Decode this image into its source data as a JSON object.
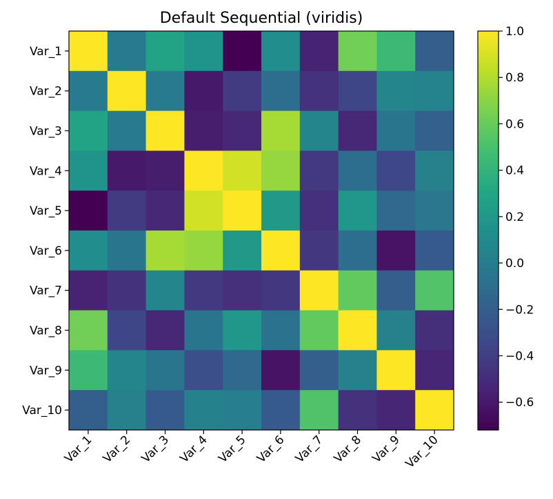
{
  "chart_data": {
    "type": "heatmap",
    "title": "Default Sequential (viridis)",
    "xlabel": "",
    "ylabel": "",
    "row_labels": [
      "Var_1",
      "Var_2",
      "Var_3",
      "Var_4",
      "Var_5",
      "Var_6",
      "Var_7",
      "Var_8",
      "Var_9",
      "Var_10"
    ],
    "col_labels": [
      "Var_1",
      "Var_2",
      "Var_3",
      "Var_4",
      "Var_5",
      "Var_6",
      "Var_7",
      "Var_8",
      "Var_9",
      "Var_10"
    ],
    "values": [
      [
        1.0,
        -0.02,
        0.28,
        0.16,
        -0.72,
        0.12,
        -0.55,
        0.63,
        0.45,
        -0.2
      ],
      [
        -0.02,
        1.0,
        -0.02,
        -0.6,
        -0.42,
        -0.1,
        -0.47,
        -0.36,
        0.06,
        0.05
      ],
      [
        0.28,
        -0.02,
        1.0,
        -0.58,
        -0.52,
        0.77,
        0.07,
        -0.52,
        -0.05,
        -0.19
      ],
      [
        0.16,
        -0.6,
        -0.58,
        1.0,
        0.88,
        0.73,
        -0.43,
        -0.1,
        -0.35,
        0.03
      ],
      [
        -0.72,
        -0.42,
        -0.52,
        0.88,
        1.0,
        0.21,
        -0.48,
        0.19,
        -0.13,
        -0.04
      ],
      [
        0.12,
        -0.05,
        0.77,
        0.73,
        0.21,
        1.0,
        -0.44,
        -0.1,
        -0.63,
        -0.22
      ],
      [
        -0.55,
        -0.47,
        0.07,
        -0.43,
        -0.48,
        -0.44,
        1.0,
        0.58,
        -0.2,
        0.53
      ],
      [
        0.63,
        -0.36,
        -0.52,
        -0.05,
        0.19,
        -0.07,
        0.58,
        1.0,
        0.03,
        -0.49
      ],
      [
        0.45,
        0.06,
        -0.05,
        -0.3,
        -0.13,
        -0.63,
        -0.2,
        0.03,
        1.0,
        -0.53
      ],
      [
        -0.2,
        0.03,
        -0.22,
        0.04,
        0.01,
        -0.22,
        0.52,
        -0.47,
        -0.53,
        1.0
      ]
    ],
    "colormap": "viridis",
    "vmin": -0.72,
    "vmax": 1.0,
    "colorbar_ticks": [
      "1.0",
      "0.8",
      "0.6",
      "0.4",
      "0.2",
      "0.0",
      "−0.2",
      "−0.4",
      "−0.6"
    ],
    "colorbar_tick_values": [
      1.0,
      0.8,
      0.6,
      0.4,
      0.2,
      0.0,
      -0.2,
      -0.4,
      -0.6
    ],
    "grid": false,
    "xtick_rotation_deg": 45
  }
}
